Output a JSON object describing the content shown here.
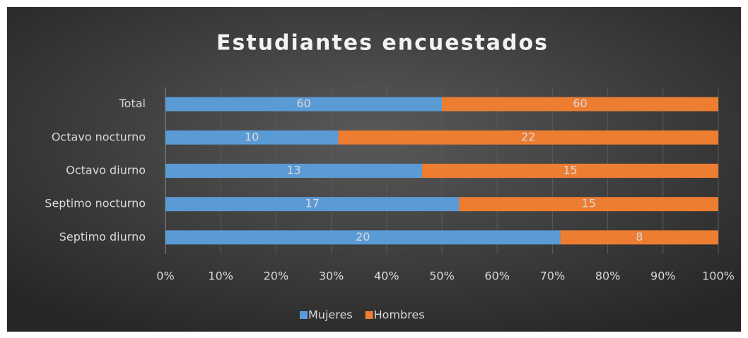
{
  "chart_data": {
    "type": "bar",
    "orientation": "horizontal",
    "stacked": "percent",
    "title": "Estudiantes  encuestados",
    "categories": [
      "Total",
      "Octavo nocturno",
      "Octavo diurno",
      "Septimo nocturno",
      "Septimo diurno"
    ],
    "series": [
      {
        "name": "Mujeres",
        "color": "#5b9bd5",
        "values": [
          60,
          10,
          13,
          17,
          20
        ]
      },
      {
        "name": "Hombres",
        "color": "#ed7d31",
        "values": [
          60,
          22,
          15,
          15,
          8
        ]
      }
    ],
    "xlim": [
      0,
      100
    ],
    "xticks": [
      {
        "value": 0,
        "label": "0%"
      },
      {
        "value": 10,
        "label": "10%"
      },
      {
        "value": 20,
        "label": "20%"
      },
      {
        "value": 30,
        "label": "30%"
      },
      {
        "value": 40,
        "label": "40%"
      },
      {
        "value": 50,
        "label": "50%"
      },
      {
        "value": 60,
        "label": "60%"
      },
      {
        "value": 70,
        "label": "70%"
      },
      {
        "value": 80,
        "label": "80%"
      },
      {
        "value": 90,
        "label": "90%"
      },
      {
        "value": 100,
        "label": "100%"
      }
    ],
    "grid": true,
    "legend": "bottom"
  }
}
